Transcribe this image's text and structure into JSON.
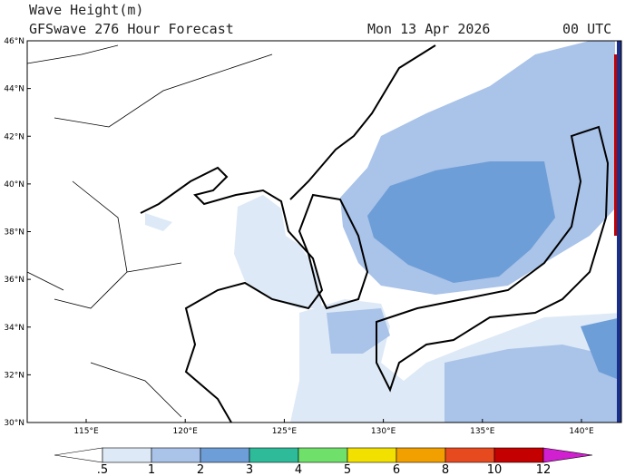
{
  "header": {
    "title": "Wave Height(m)",
    "subtitle": "GFSwave 276 Hour Forecast",
    "date": "Mon 13 Apr 2026",
    "time": "00 UTC"
  },
  "map": {
    "lat_labels": [
      "46°N",
      "44°N",
      "42°N",
      "40°N",
      "38°N",
      "36°N",
      "34°N",
      "32°N",
      "30°N"
    ],
    "lon_labels": [
      "115°E",
      "120°E",
      "125°E",
      "130°E",
      "135°E",
      "140°E"
    ]
  },
  "colorbar": {
    "labels": [
      ".5",
      "1",
      "2",
      "3",
      "4",
      "5",
      "6",
      "8",
      "10",
      "12"
    ],
    "colors": [
      "#ffffff",
      "#dde9f6",
      "#a9c3e9",
      "#6e9ed7",
      "#2dbb9a",
      "#6fe06a",
      "#f2e000",
      "#f2a000",
      "#e84a20",
      "#c40000",
      "#d020d0"
    ]
  }
}
